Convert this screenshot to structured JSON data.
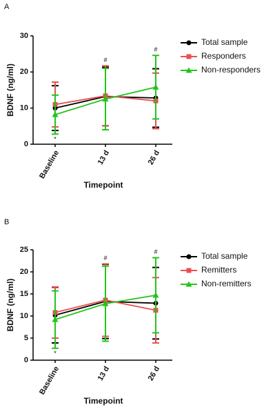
{
  "chart_data": [
    {
      "type": "line",
      "label": "A",
      "y_label": "BDNF (ng/ml)",
      "x_label": "Timepoint",
      "categories": [
        "Baseline",
        "13 d",
        "26 d"
      ],
      "ylim": [
        0,
        30
      ],
      "yticks": [
        0,
        10,
        20,
        30
      ],
      "series": [
        {
          "name": "Total sample",
          "color": "#000000",
          "marker": "circle",
          "values": [
            10,
            13.2,
            12.8
          ],
          "errors": [
            6.2,
            8.1,
            8.1
          ]
        },
        {
          "name": "Responders",
          "color": "#e8514f",
          "marker": "square",
          "values": [
            11,
            13.4,
            12
          ],
          "errors": [
            6.2,
            8.3,
            7.7
          ]
        },
        {
          "name": "Non-responders",
          "color": "#22c41a",
          "marker": "triangle",
          "values": [
            8.2,
            12.5,
            15.8
          ],
          "errors": [
            5.4,
            8.5,
            8.8
          ]
        }
      ],
      "annotations": [
        {
          "text": "*",
          "x": "Baseline",
          "position": "below"
        },
        {
          "text": "#",
          "x": "13 d",
          "position": "above"
        },
        {
          "text": "#",
          "x": "26 d",
          "position": "above"
        }
      ]
    },
    {
      "type": "line",
      "label": "B",
      "y_label": "BDNF (ng/ml)",
      "x_label": "Timepoint",
      "categories": [
        "Baseline",
        "13 d",
        "26 d"
      ],
      "ylim": [
        0,
        25
      ],
      "yticks": [
        0,
        5,
        10,
        15,
        20,
        25
      ],
      "series": [
        {
          "name": "Total sample",
          "color": "#000000",
          "marker": "circle",
          "values": [
            10.2,
            13.3,
            12.9
          ],
          "errors": [
            6.3,
            8.4,
            8.1
          ]
        },
        {
          "name": "Remitters",
          "color": "#e8514f",
          "marker": "square",
          "values": [
            10.8,
            13.6,
            11.3
          ],
          "errors": [
            5.8,
            8.2,
            7.4
          ]
        },
        {
          "name": "Non-remitters",
          "color": "#22c41a",
          "marker": "triangle",
          "values": [
            9.2,
            12.8,
            14.7
          ],
          "errors": [
            6.5,
            8.5,
            8.5
          ]
        }
      ],
      "annotations": [
        {
          "text": "*",
          "x": "Baseline",
          "position": "below"
        },
        {
          "text": "#",
          "x": "13 d",
          "position": "above"
        },
        {
          "text": "#",
          "x": "26 d",
          "position": "above"
        }
      ]
    }
  ]
}
